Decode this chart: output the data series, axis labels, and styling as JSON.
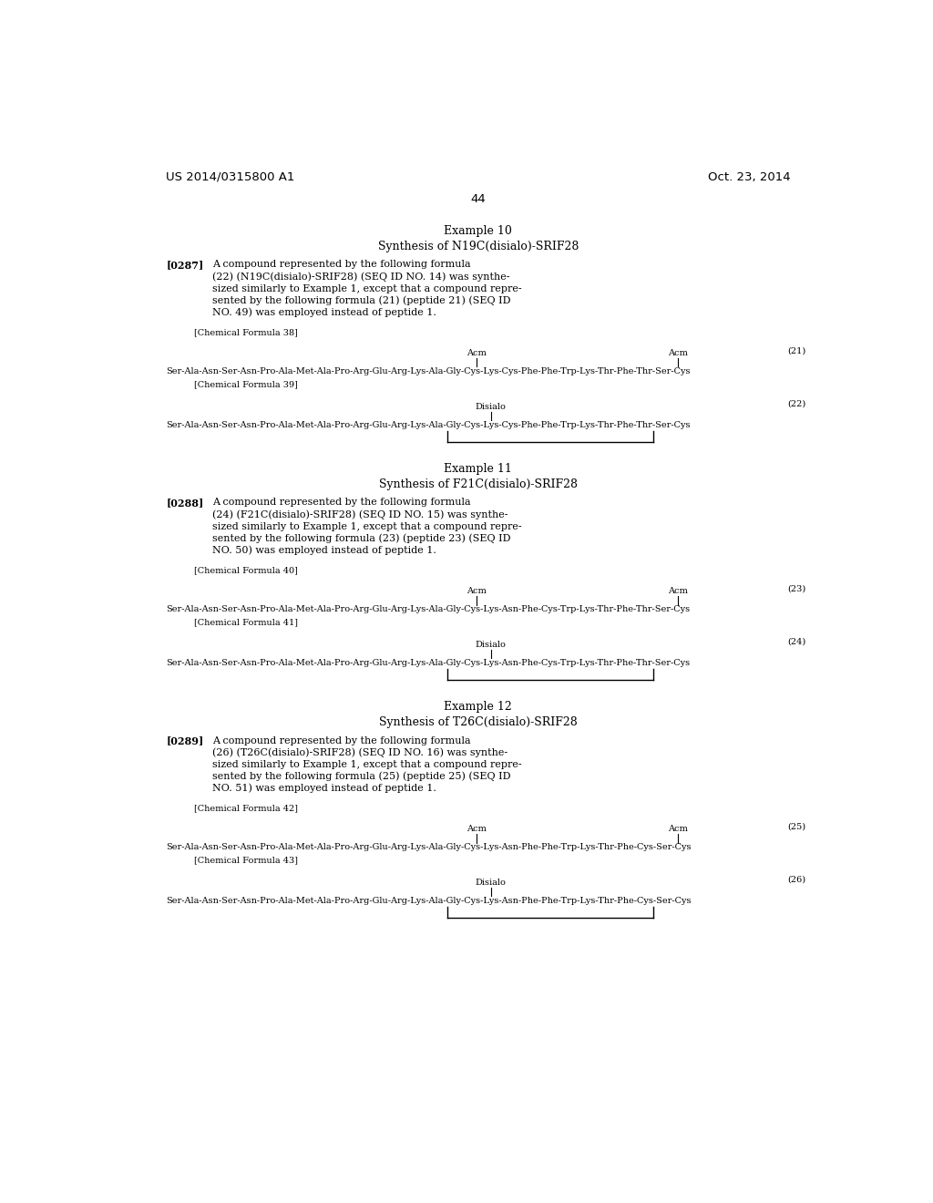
{
  "bg_color": "#ffffff",
  "header_left": "US 2014/0315800 A1",
  "header_right": "Oct. 23, 2014",
  "page_number": "44",
  "sections": [
    {
      "example_title": "Example 10",
      "synthesis_title": "Synthesis of N19C(disialo)-SRIF28",
      "paragraph_tag": "[0287]",
      "paragraph_lines": [
        "A compound represented by the following formula",
        "(22) (N19C(disialo)-SRIF28) (SEQ ID NO. 14) was synthe-",
        "sized similarly to Example 1, except that a compound repre-",
        "sented by the following formula (21) (peptide 21) (SEQ ID",
        "NO. 49) was employed instead of peptide 1."
      ],
      "formula_label_1": "[Chemical Formula 38]",
      "formula_number_1": "(21)",
      "acm_left": "Acm",
      "acm_right": "Acm",
      "peptide_seq_1": "Ser-Ala-Asn-Ser-Asn-Pro-Ala-Met-Ala-Pro-Arg-Glu-Arg-Lys-Ala-Gly-Cys-Lys-Cys-Phe-Phe-Trp-Lys-Thr-Phe-Thr-Ser-Cys",
      "formula_label_2": "[Chemical Formula 39]",
      "formula_number_2": "(22)",
      "disialo": "Disialo",
      "peptide_seq_2": "Ser-Ala-Asn-Ser-Asn-Pro-Ala-Met-Ala-Pro-Arg-Glu-Arg-Lys-Ala-Gly-Cys-Lys-Cys-Phe-Phe-Trp-Lys-Thr-Phe-Thr-Ser-Cys"
    },
    {
      "example_title": "Example 11",
      "synthesis_title": "Synthesis of F21C(disialo)-SRIF28",
      "paragraph_tag": "[0288]",
      "paragraph_lines": [
        "A compound represented by the following formula",
        "(24) (F21C(disialo)-SRIF28) (SEQ ID NO. 15) was synthe-",
        "sized similarly to Example 1, except that a compound repre-",
        "sented by the following formula (23) (peptide 23) (SEQ ID",
        "NO. 50) was employed instead of peptide 1."
      ],
      "formula_label_1": "[Chemical Formula 40]",
      "formula_number_1": "(23)",
      "acm_left": "Acm",
      "acm_right": "Acm",
      "peptide_seq_1": "Ser-Ala-Asn-Ser-Asn-Pro-Ala-Met-Ala-Pro-Arg-Glu-Arg-Lys-Ala-Gly-Cys-Lys-Asn-Phe-Cys-Trp-Lys-Thr-Phe-Thr-Ser-Cys",
      "formula_label_2": "[Chemical Formula 41]",
      "formula_number_2": "(24)",
      "disialo": "Disialo",
      "peptide_seq_2": "Ser-Ala-Asn-Ser-Asn-Pro-Ala-Met-Ala-Pro-Arg-Glu-Arg-Lys-Ala-Gly-Cys-Lys-Asn-Phe-Cys-Trp-Lys-Thr-Phe-Thr-Ser-Cys"
    },
    {
      "example_title": "Example 12",
      "synthesis_title": "Synthesis of T26C(disialo)-SRIF28",
      "paragraph_tag": "[0289]",
      "paragraph_lines": [
        "A compound represented by the following formula",
        "(26) (T26C(disialo)-SRIF28) (SEQ ID NO. 16) was synthe-",
        "sized similarly to Example 1, except that a compound repre-",
        "sented by the following formula (25) (peptide 25) (SEQ ID",
        "NO. 51) was employed instead of peptide 1."
      ],
      "formula_label_1": "[Chemical Formula 42]",
      "formula_number_1": "(25)",
      "acm_left": "Acm",
      "acm_right": "Acm",
      "peptide_seq_1": "Ser-Ala-Asn-Ser-Asn-Pro-Ala-Met-Ala-Pro-Arg-Glu-Arg-Lys-Ala-Gly-Cys-Lys-Asn-Phe-Phe-Trp-Lys-Thr-Phe-Cys-Ser-Cys",
      "formula_label_2": "[Chemical Formula 43]",
      "formula_number_2": "(26)",
      "disialo": "Disialo",
      "peptide_seq_2": "Ser-Ala-Asn-Ser-Asn-Pro-Ala-Met-Ala-Pro-Arg-Glu-Arg-Lys-Ala-Gly-Cys-Lys-Asn-Phe-Phe-Trp-Lys-Thr-Phe-Cys-Ser-Cys"
    }
  ]
}
